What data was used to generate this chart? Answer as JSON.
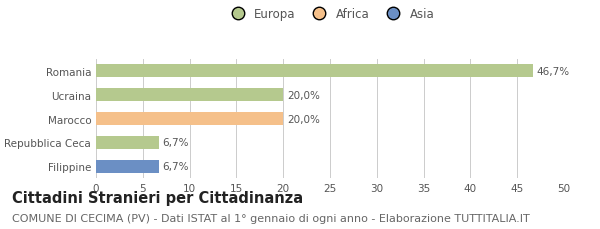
{
  "categories": [
    "Romania",
    "Ucraina",
    "Marocco",
    "Repubblica Ceca",
    "Filippine"
  ],
  "values": [
    46.7,
    20.0,
    20.0,
    6.7,
    6.7
  ],
  "colors": [
    "#b5c98e",
    "#b5c98e",
    "#f5c08a",
    "#b5c98e",
    "#6b8fc4"
  ],
  "labels": [
    "46,7%",
    "20,0%",
    "20,0%",
    "6,7%",
    "6,7%"
  ],
  "legend_items": [
    {
      "label": "Europa",
      "color": "#b5c98e"
    },
    {
      "label": "Africa",
      "color": "#f5c08a"
    },
    {
      "label": "Asia",
      "color": "#6b8fc4"
    }
  ],
  "xlim": [
    0,
    50
  ],
  "xticks": [
    0,
    5,
    10,
    15,
    20,
    25,
    30,
    35,
    40,
    45,
    50
  ],
  "title": "Cittadini Stranieri per Cittadinanza",
  "subtitle": "COMUNE DI CECIMA (PV) - Dati ISTAT al 1° gennaio di ogni anno - Elaborazione TUTTITALIA.IT",
  "background_color": "#ffffff",
  "grid_color": "#cccccc",
  "title_fontsize": 10.5,
  "subtitle_fontsize": 8,
  "label_fontsize": 7.5,
  "tick_fontsize": 7.5,
  "legend_fontsize": 8.5
}
